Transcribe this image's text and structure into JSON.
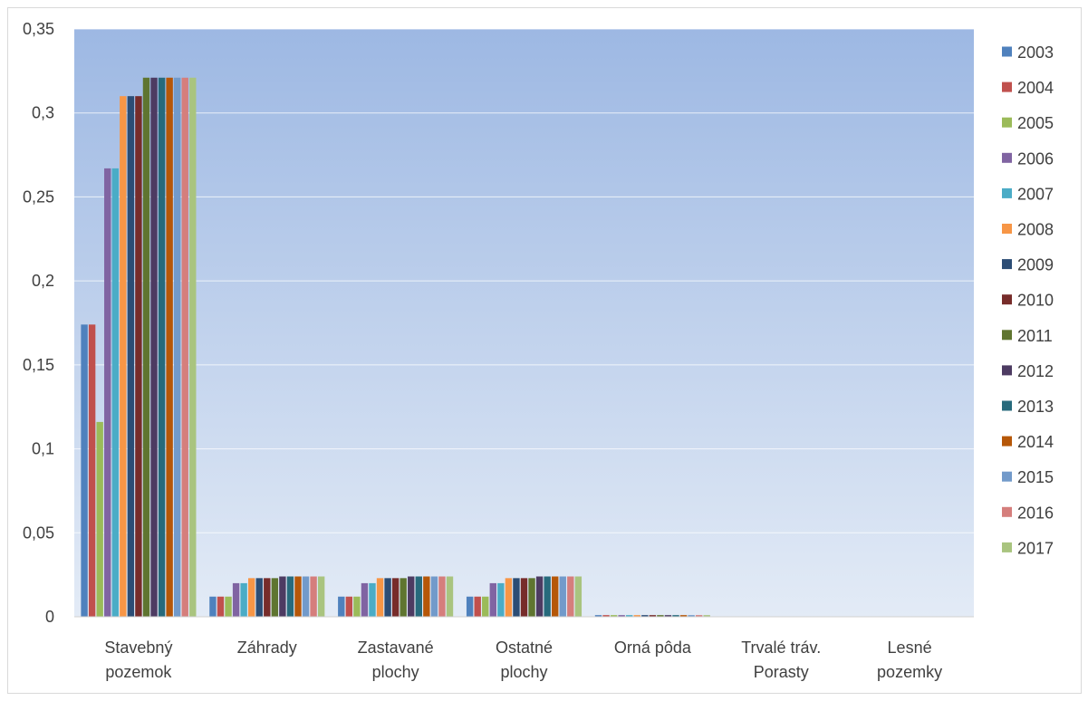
{
  "chart_data": {
    "type": "bar",
    "title": "",
    "xlabel": "",
    "ylabel": "",
    "ylim": [
      0,
      0.35
    ],
    "yticks": [
      "0",
      "0,05",
      "0,1",
      "0,15",
      "0,2",
      "0,25",
      "0,3",
      "0,35"
    ],
    "grid": true,
    "legend_position": "right",
    "categories": [
      [
        "Stavebný",
        "pozemok"
      ],
      [
        "Záhrady"
      ],
      [
        "Zastavané",
        "plochy"
      ],
      [
        "Ostatné",
        "plochy"
      ],
      [
        "Orná pôda"
      ],
      [
        "Trvalé tráv.",
        "Porasty"
      ],
      [
        "Lesné",
        "pozemky"
      ]
    ],
    "series": [
      {
        "name": "2003",
        "color": "#4f81bd",
        "values": [
          0.174,
          0.012,
          0.012,
          0.012,
          0.001,
          0,
          0
        ]
      },
      {
        "name": "2004",
        "color": "#c0504d",
        "values": [
          0.174,
          0.012,
          0.012,
          0.012,
          0.001,
          0,
          0
        ]
      },
      {
        "name": "2005",
        "color": "#9bbb59",
        "values": [
          0.116,
          0.012,
          0.012,
          0.012,
          0.001,
          0,
          0
        ]
      },
      {
        "name": "2006",
        "color": "#8064a2",
        "values": [
          0.267,
          0.02,
          0.02,
          0.02,
          0.001,
          0,
          0
        ]
      },
      {
        "name": "2007",
        "color": "#4bacc6",
        "values": [
          0.267,
          0.02,
          0.02,
          0.02,
          0.001,
          0,
          0
        ]
      },
      {
        "name": "2008",
        "color": "#f79646",
        "values": [
          0.31,
          0.023,
          0.023,
          0.023,
          0.001,
          0,
          0
        ]
      },
      {
        "name": "2009",
        "color": "#2c4d75",
        "values": [
          0.31,
          0.023,
          0.023,
          0.023,
          0.001,
          0,
          0
        ]
      },
      {
        "name": "2010",
        "color": "#772c2a",
        "values": [
          0.31,
          0.023,
          0.023,
          0.023,
          0.001,
          0,
          0
        ]
      },
      {
        "name": "2011",
        "color": "#5f7530",
        "values": [
          0.321,
          0.023,
          0.023,
          0.023,
          0.001,
          0,
          0
        ]
      },
      {
        "name": "2012",
        "color": "#4d3b62",
        "values": [
          0.321,
          0.024,
          0.024,
          0.024,
          0.001,
          0,
          0
        ]
      },
      {
        "name": "2013",
        "color": "#276a7c",
        "values": [
          0.321,
          0.024,
          0.024,
          0.024,
          0.001,
          0,
          0
        ]
      },
      {
        "name": "2014",
        "color": "#b65708",
        "values": [
          0.321,
          0.024,
          0.024,
          0.024,
          0.001,
          0,
          0
        ]
      },
      {
        "name": "2015",
        "color": "#729aca",
        "values": [
          0.321,
          0.024,
          0.024,
          0.024,
          0.001,
          0,
          0
        ]
      },
      {
        "name": "2016",
        "color": "#d57e7c",
        "values": [
          0.321,
          0.024,
          0.024,
          0.024,
          0.001,
          0,
          0
        ]
      },
      {
        "name": "2017",
        "color": "#a9c47f",
        "values": [
          0.321,
          0.024,
          0.024,
          0.024,
          0.001,
          0,
          0
        ]
      }
    ]
  }
}
